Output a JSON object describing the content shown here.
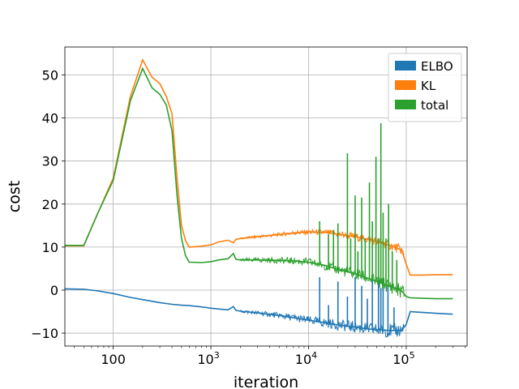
{
  "chart_data": {
    "type": "line",
    "title": "",
    "xlabel": "iteration",
    "ylabel": "cost",
    "xscale": "log",
    "xlim": [
      32,
      420000
    ],
    "ylim": [
      -13,
      56.5
    ],
    "yticks": [
      -10,
      0,
      10,
      20,
      30,
      40,
      50
    ],
    "ytick_labels": [
      "−10",
      "0",
      "10",
      "20",
      "30",
      "40",
      "50"
    ],
    "xticks": [
      100,
      1000,
      10000,
      100000
    ],
    "xtick_labels": [
      {
        "base": "100",
        "exp": ""
      },
      {
        "base": "10",
        "exp": "3"
      },
      {
        "base": "10",
        "exp": "4"
      },
      {
        "base": "10",
        "exp": "5"
      }
    ],
    "grid": true,
    "legend_position": "top-right",
    "series": [
      {
        "name": "ELBO",
        "color": "#1f77b4",
        "x": [
          32,
          50,
          70,
          100,
          150,
          200,
          300,
          400,
          500,
          600,
          800,
          1000,
          1500,
          1700,
          1800,
          2000,
          3000,
          5000,
          7000,
          10000,
          15000,
          20000,
          30000,
          40000,
          50000,
          70000,
          90000,
          100000,
          110000,
          150000,
          200000,
          300000
        ],
        "y": [
          0.3,
          0.2,
          -0.2,
          -0.8,
          -1.7,
          -2.2,
          -2.9,
          -3.3,
          -3.5,
          -3.6,
          -3.9,
          -4.2,
          -4.6,
          -3.8,
          -4.7,
          -4.9,
          -5.3,
          -5.9,
          -6.4,
          -7.0,
          -7.6,
          -8.1,
          -8.6,
          -9.0,
          -9.2,
          -9.4,
          -9.3,
          -8.0,
          -5.0,
          -5.2,
          -5.4,
          -5.6
        ],
        "spikes": [
          {
            "x": 13000,
            "y": 3.0
          },
          {
            "x": 16000,
            "y": -3.5
          },
          {
            "x": 20000,
            "y": 2.0
          },
          {
            "x": 25000,
            "y": -1.5
          },
          {
            "x": 30000,
            "y": 3.0
          },
          {
            "x": 35000,
            "y": 1.0
          },
          {
            "x": 40000,
            "y": -2.0
          },
          {
            "x": 45000,
            "y": 2.5
          },
          {
            "x": 52000,
            "y": 3.0
          },
          {
            "x": 55000,
            "y": 0.5
          },
          {
            "x": 58000,
            "y": 3.0
          },
          {
            "x": 65000,
            "y": 1.0
          },
          {
            "x": 75000,
            "y": -4.0
          }
        ]
      },
      {
        "name": "KL",
        "color": "#ff7f0e",
        "x": [
          32,
          50,
          70,
          100,
          150,
          200,
          250,
          300,
          350,
          400,
          450,
          500,
          550,
          600,
          800,
          1000,
          1200,
          1500,
          1700,
          1800,
          2000,
          3000,
          5000,
          7000,
          10000,
          15000,
          20000,
          30000,
          40000,
          50000,
          70000,
          90000,
          100000,
          110000,
          150000,
          200000,
          300000
        ],
        "y": [
          10.3,
          10.3,
          18.0,
          26.0,
          45.0,
          53.5,
          49.5,
          48.0,
          45.0,
          41.0,
          26.0,
          15.0,
          11.5,
          10.0,
          10.2,
          10.5,
          11.2,
          11.6,
          11.0,
          11.8,
          12.0,
          12.4,
          12.9,
          13.3,
          13.5,
          13.4,
          13.0,
          12.4,
          11.8,
          11.3,
          10.3,
          9.3,
          6.0,
          3.5,
          3.5,
          3.6,
          3.6
        ]
      },
      {
        "name": "total",
        "color": "#2ca02c",
        "x": [
          32,
          50,
          70,
          100,
          150,
          200,
          250,
          300,
          350,
          400,
          450,
          500,
          550,
          600,
          800,
          1000,
          1200,
          1500,
          1700,
          1800,
          2000,
          3000,
          5000,
          7000,
          10000,
          15000,
          20000,
          30000,
          40000,
          50000,
          70000,
          90000,
          100000,
          110000,
          150000,
          200000,
          300000
        ],
        "y": [
          10.4,
          10.4,
          18.0,
          25.5,
          44.0,
          51.5,
          47.0,
          45.5,
          43.0,
          37.0,
          22.0,
          12.0,
          8.0,
          6.5,
          6.4,
          6.6,
          7.0,
          7.3,
          8.5,
          7.2,
          7.0,
          7.0,
          6.9,
          6.8,
          6.5,
          5.7,
          4.8,
          3.8,
          2.8,
          2.0,
          0.8,
          -0.2,
          -1.5,
          -1.8,
          -1.9,
          -2.0,
          -2.0
        ],
        "spikes": [
          {
            "x": 13000,
            "y": 16.0
          },
          {
            "x": 16000,
            "y": 13.0
          },
          {
            "x": 18000,
            "y": 14.0
          },
          {
            "x": 20000,
            "y": 15.5
          },
          {
            "x": 25000,
            "y": 31.8
          },
          {
            "x": 27000,
            "y": 12.0
          },
          {
            "x": 30000,
            "y": 22.0
          },
          {
            "x": 32000,
            "y": 9.0
          },
          {
            "x": 35000,
            "y": 21.5
          },
          {
            "x": 38000,
            "y": 12.0
          },
          {
            "x": 42000,
            "y": 25.0
          },
          {
            "x": 45000,
            "y": 16.0
          },
          {
            "x": 49000,
            "y": 31.0
          },
          {
            "x": 52000,
            "y": 12.0
          },
          {
            "x": 55000,
            "y": 38.8
          },
          {
            "x": 58000,
            "y": 18.0
          },
          {
            "x": 62000,
            "y": 12.0
          },
          {
            "x": 66000,
            "y": 20.0
          },
          {
            "x": 72000,
            "y": 9.0
          },
          {
            "x": 80000,
            "y": 7.0
          }
        ]
      }
    ]
  }
}
